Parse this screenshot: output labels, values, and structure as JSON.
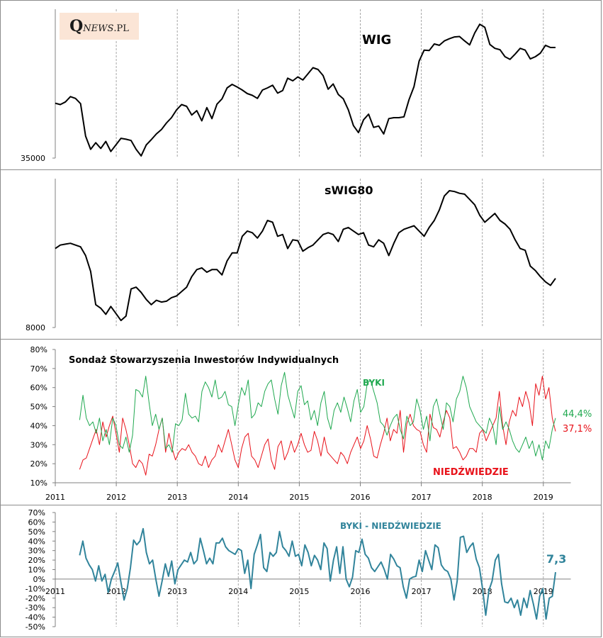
{
  "logo": {
    "q": "Q",
    "news": "NEWS",
    "pl": ".PL"
  },
  "colors": {
    "black": "#000000",
    "bulls": "#1fa84f",
    "bears": "#e8121a",
    "spread": "#31849b",
    "grid": "#a6a6a6",
    "axis": "#808080"
  },
  "chart_data": [
    {
      "type": "line",
      "title": "WIG",
      "ylabel": "",
      "ytick_labels": [
        "35000"
      ],
      "x_range": [
        2011,
        2019.3
      ],
      "series": [
        {
          "name": "WIG",
          "x_start": 2011.0,
          "x_end": 2019.2,
          "values": [
            47500,
            47200,
            47800,
            49000,
            48600,
            47400,
            40000,
            37000,
            38500,
            37200,
            38800,
            36500,
            38000,
            39500,
            39300,
            39000,
            37000,
            35500,
            38000,
            39200,
            40500,
            41500,
            43000,
            44200,
            46000,
            47200,
            46800,
            44800,
            45800,
            43500,
            46500,
            44000,
            47300,
            48500,
            51000,
            51800,
            51200,
            50500,
            49700,
            49300,
            48600,
            50500,
            51000,
            51600,
            49800,
            50400,
            53200,
            52600,
            53500,
            52800,
            54200,
            55600,
            55200,
            53800,
            50700,
            51900,
            49500,
            48500,
            46000,
            42400,
            40800,
            43700,
            45000,
            42000,
            42300,
            40500,
            44000,
            44200,
            44200,
            44400,
            48300,
            51300,
            57100,
            59600,
            59500,
            61000,
            60700,
            61700,
            62200,
            62600,
            62700,
            61700,
            60800,
            63500,
            65500,
            64800,
            60900,
            60000,
            59700,
            58100,
            57500,
            58700,
            60000,
            59600,
            57600,
            58100,
            58900,
            60700,
            60200,
            60200
          ]
        }
      ],
      "grid": "vertical-dashed-yearly"
    },
    {
      "type": "line",
      "title": "sWIG80",
      "ytick_labels": [
        "8000"
      ],
      "x_range": [
        2011,
        2019.3
      ],
      "series": [
        {
          "name": "sWIG80",
          "x_start": 2011.0,
          "x_end": 2019.2,
          "values": [
            12500,
            12700,
            12750,
            12800,
            12700,
            12600,
            12100,
            11200,
            9300,
            9100,
            8750,
            9200,
            8800,
            8400,
            8650,
            10200,
            10300,
            10000,
            9600,
            9300,
            9550,
            9450,
            9500,
            9700,
            9800,
            10050,
            10300,
            10900,
            11300,
            11400,
            11150,
            11300,
            11300,
            11000,
            11800,
            12250,
            12250,
            13200,
            13500,
            13400,
            13100,
            13500,
            14100,
            14000,
            13200,
            13300,
            12500,
            13000,
            12950,
            12350,
            12550,
            12700,
            13000,
            13300,
            13400,
            13300,
            12900,
            13600,
            13700,
            13500,
            13300,
            13400,
            12700,
            12600,
            13000,
            12800,
            12100,
            12800,
            13400,
            13600,
            13700,
            13800,
            13500,
            13200,
            13700,
            14100,
            14700,
            15500,
            15800,
            15750,
            15650,
            15600,
            15300,
            15000,
            14400,
            14000,
            14250,
            14500,
            14100,
            13900,
            13600,
            13000,
            12500,
            12400,
            11500,
            11250,
            10900,
            10600,
            10400,
            10800
          ]
        }
      ],
      "grid": "vertical-dashed-yearly"
    },
    {
      "type": "line",
      "title": "Sondaż Stowarzyszenia Inwestorów Indywidualnych",
      "ylim": [
        10,
        80
      ],
      "ytick_labels": [
        "10%",
        "20%",
        "30%",
        "40%",
        "50%",
        "60%",
        "70%",
        "80%"
      ],
      "yticks": [
        10,
        20,
        30,
        40,
        50,
        60,
        70,
        80
      ],
      "xtick_labels": [
        "2011",
        "2012",
        "2013",
        "2014",
        "2015",
        "2016",
        "2017",
        "2018",
        "2019"
      ],
      "x_range": [
        2011,
        2019.5
      ],
      "series": [
        {
          "name": "BYKI",
          "x_start": 2011.4,
          "x_end": 2019.2,
          "values": [
            43,
            56,
            44,
            40,
            42,
            36,
            44,
            32,
            38,
            30,
            44,
            40,
            30,
            28,
            34,
            26,
            35,
            59,
            58,
            55,
            66,
            52,
            40,
            46,
            38,
            44,
            28,
            30,
            26,
            41,
            40,
            43,
            57,
            46,
            44,
            45,
            42,
            58,
            63,
            60,
            55,
            64,
            54,
            55,
            58,
            51,
            50,
            40,
            51,
            60,
            56,
            64,
            44,
            46,
            52,
            50,
            58,
            62,
            64,
            54,
            46,
            61,
            68,
            56,
            50,
            44,
            58,
            61,
            51,
            53,
            43,
            48,
            40,
            52,
            58,
            44,
            38,
            48,
            52,
            47,
            55,
            49,
            42,
            53,
            59,
            47,
            50,
            62,
            64,
            58,
            52,
            42,
            40,
            35,
            40,
            44,
            46,
            38,
            33,
            45,
            40,
            42,
            54,
            48,
            38,
            45,
            32,
            50,
            54,
            46,
            38,
            52,
            50,
            42,
            54,
            58,
            66,
            60,
            50,
            46,
            42,
            40,
            38,
            36,
            44,
            40,
            30,
            50,
            38,
            42,
            38,
            32,
            28,
            26,
            30,
            34,
            28,
            32,
            24,
            30,
            22,
            32,
            28,
            38,
            44
          ]
        },
        {
          "name": "NIEDŹWIEDZIE",
          "x_start": 2011.4,
          "x_end": 2019.2,
          "values": [
            17,
            22,
            23,
            28,
            33,
            38,
            30,
            42,
            34,
            40,
            45,
            36,
            26,
            44,
            38,
            30,
            20,
            18,
            22,
            20,
            14,
            25,
            24,
            30,
            38,
            44,
            26,
            36,
            28,
            22,
            26,
            28,
            27,
            30,
            26,
            24,
            20,
            19,
            24,
            18,
            22,
            24,
            30,
            26,
            32,
            38,
            30,
            22,
            18,
            28,
            34,
            36,
            24,
            22,
            18,
            24,
            30,
            33,
            22,
            17,
            29,
            32,
            22,
            26,
            32,
            26,
            30,
            36,
            30,
            26,
            27,
            37,
            32,
            24,
            34,
            26,
            24,
            22,
            20,
            26,
            24,
            20,
            26,
            30,
            34,
            28,
            32,
            40,
            33,
            24,
            23,
            30,
            36,
            44,
            32,
            38,
            36,
            48,
            26,
            41,
            46,
            40,
            38,
            37,
            30,
            26,
            46,
            39,
            38,
            34,
            42,
            48,
            44,
            28,
            29,
            26,
            22,
            24,
            28,
            28,
            26,
            36,
            38,
            32,
            36,
            40,
            44,
            58,
            40,
            30,
            42,
            48,
            45,
            55,
            50,
            58,
            52,
            40,
            62,
            56,
            66,
            54,
            60,
            44,
            37
          ]
        }
      ],
      "annotations": [
        "BYKI",
        "NIEDŹWIEDZIE",
        "44,4%",
        "37,1%"
      ]
    },
    {
      "type": "line",
      "title": "BYKI - NIEDŹWIEDZIE",
      "ylim": [
        -50,
        70
      ],
      "ytick_labels": [
        "-50%",
        "-40%",
        "-30%",
        "-20%",
        "-10%",
        "0%",
        "10%",
        "20%",
        "30%",
        "40%",
        "50%",
        "60%",
        "70%"
      ],
      "yticks": [
        -50,
        -40,
        -30,
        -20,
        -10,
        0,
        10,
        20,
        30,
        40,
        50,
        60,
        70
      ],
      "xtick_labels": [
        "2011",
        "2012",
        "2013",
        "2014",
        "2015",
        "2016",
        "2017",
        "2018",
        "2019"
      ],
      "x_range": [
        2011,
        2019.5
      ],
      "series": [
        {
          "name": "BYKI - NIEDŹWIEDZIE",
          "x_start": 2011.4,
          "x_end": 2019.2,
          "values": [
            25,
            40,
            22,
            15,
            10,
            -2,
            14,
            -2,
            5,
            -14,
            0,
            8,
            17,
            -3,
            -22,
            -10,
            12,
            41,
            36,
            40,
            53,
            28,
            16,
            20,
            0,
            -18,
            -2,
            16,
            3,
            19,
            -5,
            10,
            15,
            20,
            18,
            28,
            16,
            20,
            43,
            30,
            16,
            22,
            16,
            38,
            38,
            43,
            34,
            30,
            28,
            26,
            32,
            30,
            6,
            20,
            -10,
            26,
            36,
            47,
            12,
            8,
            28,
            24,
            28,
            50,
            34,
            30,
            24,
            40,
            24,
            26,
            14,
            36,
            28,
            14,
            25,
            20,
            10,
            38,
            32,
            -2,
            20,
            34,
            6,
            34,
            0,
            -8,
            2,
            30,
            28,
            42,
            26,
            22,
            12,
            8,
            13,
            18,
            10,
            0,
            26,
            21,
            14,
            12,
            -8,
            -20,
            0,
            2,
            3,
            20,
            8,
            30,
            20,
            10,
            36,
            33,
            15,
            10,
            8,
            0,
            -22,
            -2,
            44,
            45,
            28,
            34,
            38,
            21,
            12,
            -10,
            -38,
            -12,
            -2,
            20,
            26,
            -5,
            -24,
            -25,
            -20,
            -30,
            -22,
            -38,
            -20,
            -30,
            -12,
            -26,
            -42,
            -18,
            -10,
            -42,
            -20,
            -18,
            7.3
          ]
        }
      ],
      "annotations": [
        "BYKI - NIEDŹWIEDZIE",
        "7,3"
      ]
    }
  ]
}
